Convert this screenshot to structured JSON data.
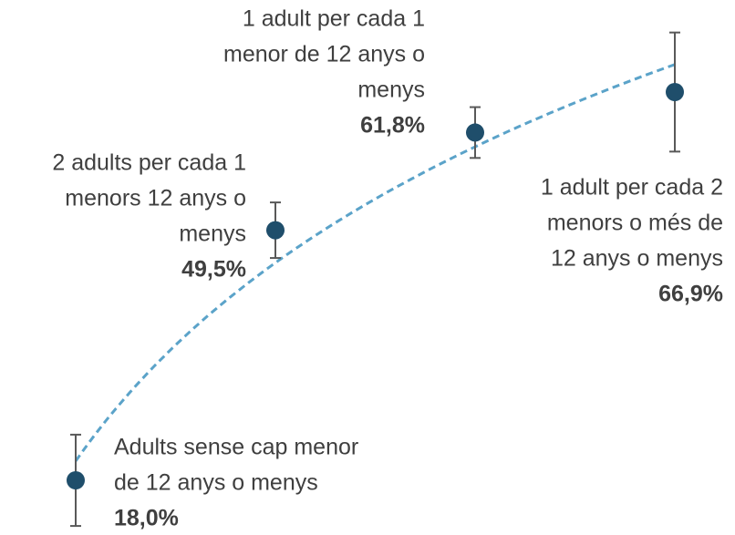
{
  "chart_data": {
    "type": "scatter",
    "categories": [
      [
        "Adults sense cap menor",
        "de 12 anys o menys"
      ],
      [
        "2 adults per cada 1",
        "menors 12 anys o",
        "menys"
      ],
      [
        "1 adult per cada 1",
        "menor de 12 anys o",
        "menys"
      ],
      [
        "1 adult per cada 2",
        "menors o més de",
        "12 anys o menys"
      ]
    ],
    "values": [
      18.0,
      49.5,
      61.8,
      66.9
    ],
    "value_labels": [
      "18,0%",
      "49,5%",
      "61,8%",
      "66,9%"
    ],
    "errors": [
      5.75,
      3.5,
      3.2,
      7.5
    ],
    "color": "#1f4e6b",
    "error_color": "#595959",
    "trend_color": "#5ba3c9"
  }
}
